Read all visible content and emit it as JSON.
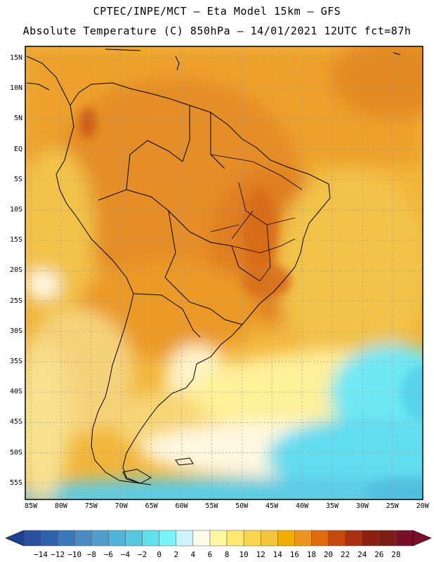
{
  "header": {
    "line1": "CPTEC/INPE/MCT –  Eta Model 15km – GFS",
    "line2": "Absolute Temperature (C) 850hPa – 14/01/2021 12UTC fct=87h"
  },
  "map": {
    "region": "South America",
    "lat_labels": [
      "15N",
      "10N",
      "5N",
      "EQ",
      "5S",
      "10S",
      "15S",
      "20S",
      "25S",
      "30S",
      "35S",
      "40S",
      "45S",
      "50S",
      "55S"
    ],
    "lon_labels": [
      "85W",
      "80W",
      "75W",
      "70W",
      "65W",
      "60W",
      "55W",
      "50W",
      "45W",
      "40W",
      "35W",
      "30W",
      "25W",
      "20W"
    ]
  },
  "colorbar": {
    "labels": [
      "-14",
      "-12",
      "-10",
      "-8",
      "-6",
      "-4",
      "-2",
      "0",
      "2",
      "4",
      "6",
      "8",
      "10",
      "12",
      "14",
      "16",
      "18",
      "20",
      "22",
      "24",
      "26",
      "28"
    ],
    "colors": [
      "#2a4fa0",
      "#2f62ad",
      "#3a78bb",
      "#4a8cc6",
      "#4f9fcf",
      "#4db5d9",
      "#55c8e0",
      "#5fe0ec",
      "#78f4f9",
      "#cdf2fb",
      "#fffbe6",
      "#fff7a0",
      "#ffe870",
      "#f8d650",
      "#f2c43c",
      "#f0af00",
      "#ec9620",
      "#e06a10",
      "#c84810",
      "#a83010",
      "#8a2010",
      "#7a1f14",
      "#7b0f2a"
    ]
  }
}
